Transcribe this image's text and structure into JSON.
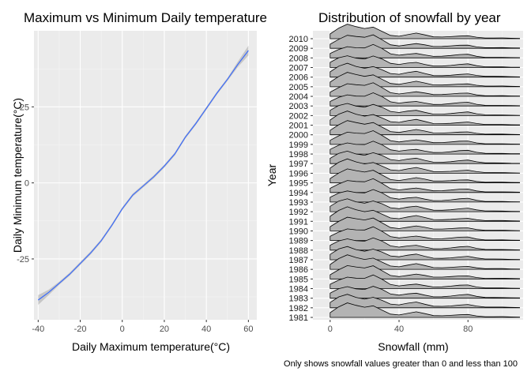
{
  "chart_data": [
    {
      "type": "line",
      "title": "Maximum vs Minimum Daily temperature",
      "xlabel": "Daily Maximum temperature(°C)",
      "ylabel": "Daily Minimum temperature(°C)",
      "xlim": [
        -42,
        64
      ],
      "ylim": [
        -45,
        50
      ],
      "x_ticks": [
        -40,
        -20,
        0,
        20,
        40,
        60
      ],
      "y_ticks": [
        -25,
        0,
        25
      ],
      "grid": true,
      "line_color": "#3366ff",
      "ribbon_color": "#999999",
      "series": [
        {
          "x": [
            -40,
            -35,
            -30,
            -25,
            -20,
            -15,
            -10,
            -5,
            0,
            5,
            10,
            15,
            20,
            25,
            30,
            35,
            40,
            45,
            50,
            55,
            60
          ],
          "y": [
            -38.5,
            -36,
            -33,
            -30,
            -26.5,
            -23,
            -19,
            -14,
            -8.5,
            -4,
            -1,
            2,
            5.5,
            9.5,
            15,
            19.5,
            24.5,
            29.5,
            34,
            39,
            43.5
          ]
        }
      ]
    },
    {
      "type": "area",
      "subtype": "ridgeline",
      "title": "Distribution of snowfall by year",
      "xlabel": "Snowfall (mm)",
      "ylabel": "Year",
      "xlim": [
        -10,
        112
      ],
      "x_ticks": [
        0,
        40,
        80
      ],
      "grid": true,
      "fill_color": "#b3b3b3",
      "categories": [
        "1981",
        "1982",
        "1983",
        "1984",
        "1985",
        "1986",
        "1987",
        "1988",
        "1989",
        "1990",
        "1991",
        "1992",
        "1993",
        "1994",
        "1995",
        "1996",
        "1997",
        "1998",
        "1999",
        "2000",
        "2001",
        "2002",
        "2003",
        "2004",
        "2005",
        "2006",
        "2007",
        "2008",
        "2009",
        "2010"
      ],
      "density_x": [
        0,
        5,
        10,
        15,
        20,
        25,
        30,
        35,
        40,
        45,
        50,
        55,
        60,
        65,
        70,
        75,
        80,
        85,
        90,
        95,
        100,
        105,
        110
      ],
      "density": [
        0.35,
        0.72,
        0.95,
        0.8,
        0.72,
        0.9,
        0.62,
        0.28,
        0.2,
        0.3,
        0.38,
        0.25,
        0.12,
        0.12,
        0.16,
        0.22,
        0.25,
        0.12,
        0.05,
        0.05,
        0.05,
        0.03,
        0.02
      ]
    }
  ],
  "caption": "Only shows snowfall values greater than 0 and less than 100"
}
